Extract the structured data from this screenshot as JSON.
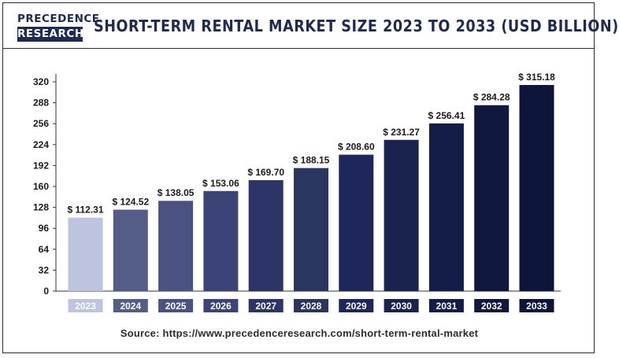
{
  "header": {
    "logo_line1": "PRECEDENCE",
    "logo_line2": "RESEARCH",
    "title": "SHORT-TERM RENTAL MARKET SIZE 2023 TO 2033 (USD BILLION)"
  },
  "source_text": "Source: https://www.precedenceresearch.com/short-term-rental-market",
  "chart_data": {
    "type": "bar",
    "title": "SHORT-TERM RENTAL MARKET SIZE 2023 TO 2033 (USD BILLION)",
    "xlabel": "",
    "ylabel": "",
    "categories": [
      "2023",
      "2024",
      "2025",
      "2026",
      "2027",
      "2028",
      "2029",
      "2030",
      "2031",
      "2032",
      "2033"
    ],
    "values": [
      112.31,
      124.52,
      138.05,
      153.06,
      169.7,
      188.15,
      208.6,
      231.27,
      256.41,
      284.28,
      315.18
    ],
    "data_labels": [
      "$ 112.31",
      "$ 124.52",
      "$ 138.05",
      "$ 153.06",
      "$ 169.70",
      "$ 188.15",
      "$ 208.60",
      "$ 231.27",
      "$ 256.41",
      "$ 284.28",
      "$ 315.18"
    ],
    "bar_colors": [
      "#bcc4e0",
      "#545d88",
      "#4a5284",
      "#3c4477",
      "#2c3468",
      "#2a3560",
      "#1e275c",
      "#1a2350",
      "#141c48",
      "#10183f",
      "#0d153a"
    ],
    "yticks": [
      0,
      32,
      64,
      96,
      128,
      160,
      192,
      224,
      256,
      288,
      320
    ],
    "ylim": [
      0,
      320
    ],
    "grid": false,
    "legend": "none"
  }
}
